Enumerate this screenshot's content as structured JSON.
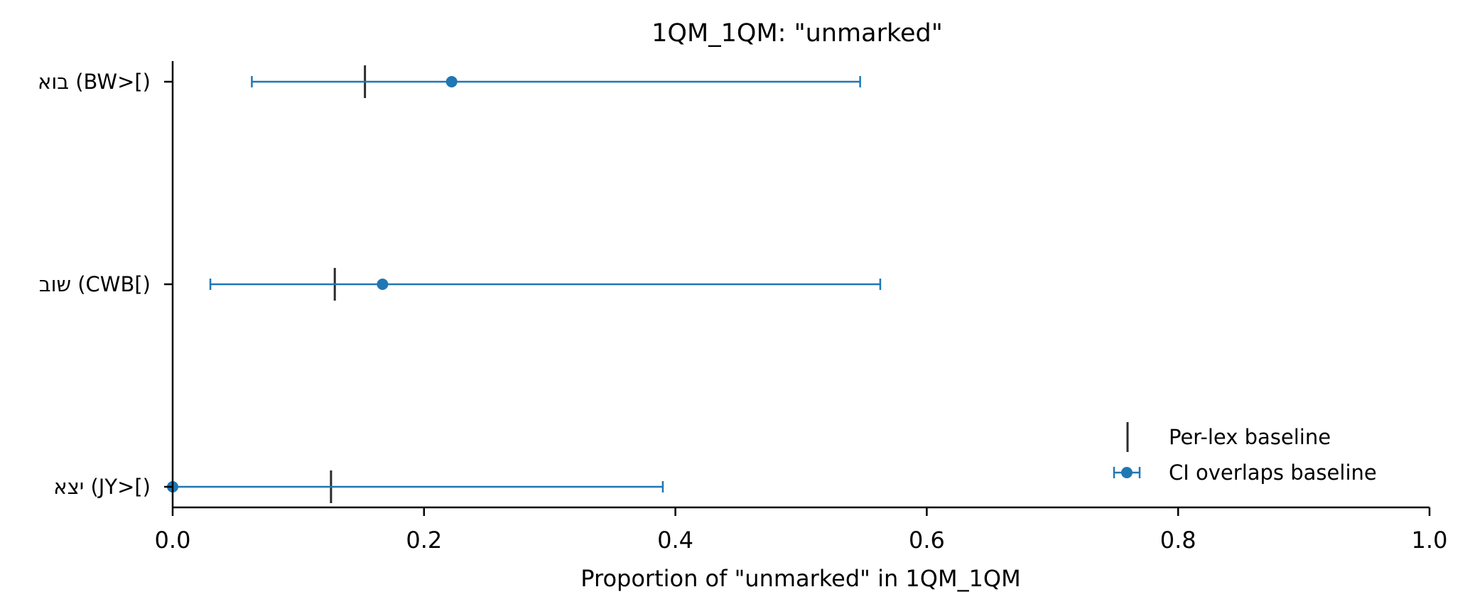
{
  "chart_data": {
    "type": "errorbar",
    "title": "1QM_1QM: \"unmarked\"",
    "xlabel": "Proportion of \"unmarked\" in 1QM_1QM",
    "ylabel": "",
    "xlim": [
      0.0,
      1.0
    ],
    "xticks": [
      "0.0",
      "0.2",
      "0.4",
      "0.6",
      "0.8",
      "1.0"
    ],
    "categories": [
      "בוא (BW>[)",
      "שוב (CWB[)",
      "יצא (JY>[)"
    ],
    "series": [
      {
        "name": "CI overlaps baseline",
        "color": "#1f77b4",
        "points": [
          {
            "category": "בוא (BW>[)",
            "value": 0.222,
            "ci_low": 0.063,
            "ci_high": 0.547
          },
          {
            "category": "שוב (CWB[)",
            "value": 0.167,
            "ci_low": 0.03,
            "ci_high": 0.563
          },
          {
            "category": "יצא (JY>[)",
            "value": 0.0,
            "ci_low": 0.0,
            "ci_high": 0.39
          }
        ]
      },
      {
        "name": "Per-lex baseline",
        "color": "#2b2b2b",
        "marker": "vertical-line",
        "values": [
          0.153,
          0.129,
          0.126
        ]
      }
    ],
    "legend": {
      "placement": "lower-right",
      "entries": [
        "Per-lex baseline",
        "CI overlaps baseline"
      ]
    },
    "grid": false
  }
}
